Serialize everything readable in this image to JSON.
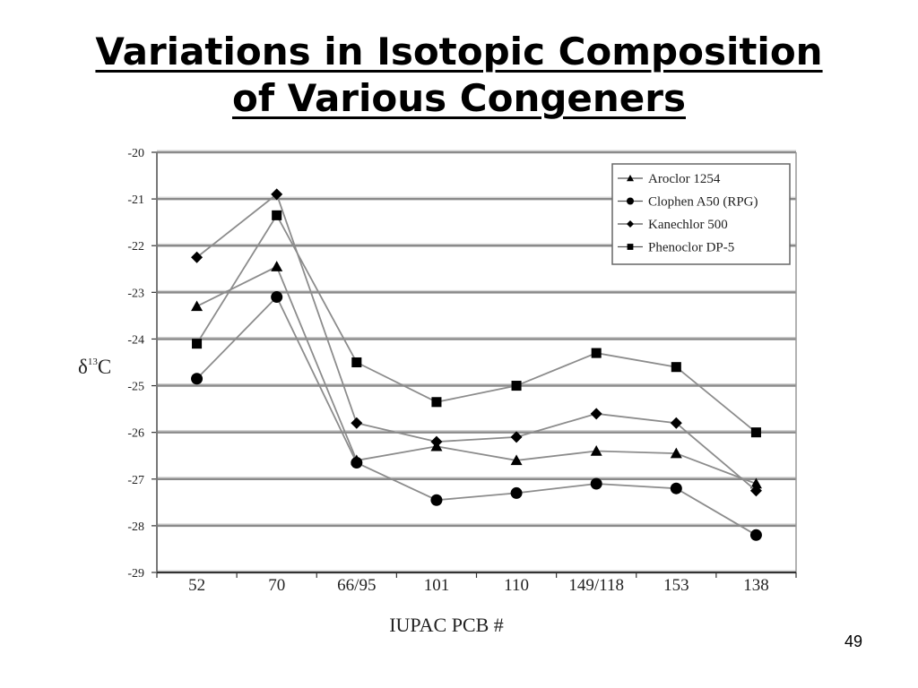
{
  "slide": {
    "title_line1": "Variations in Isotopic Composition",
    "title_line2": "of Various Congeners",
    "page_number": "49"
  },
  "chart_data": {
    "type": "line",
    "title": "",
    "xlabel": "IUPAC PCB #",
    "ylabel_prefix": "δ",
    "ylabel_sup": "13",
    "ylabel_suffix": "C",
    "categories": [
      "52",
      "70",
      "66/95",
      "101",
      "110",
      "149/118",
      "153",
      "138"
    ],
    "ylim": [
      -29,
      -20
    ],
    "yticks": [
      -20,
      -21,
      -22,
      -23,
      -24,
      -25,
      -26,
      -27,
      -28,
      -29
    ],
    "grid": "horizontal",
    "legend_position": "top-right",
    "series": [
      {
        "name": "Aroclor 1254",
        "marker": "triangle",
        "values": [
          -23.3,
          -22.45,
          -26.6,
          -26.3,
          -26.6,
          -26.4,
          -26.45,
          -27.1
        ]
      },
      {
        "name": "Clophen A50 (RPG)",
        "marker": "circle",
        "values": [
          -24.85,
          -23.1,
          -26.65,
          -27.45,
          -27.3,
          -27.1,
          -27.2,
          -28.2
        ]
      },
      {
        "name": "Kanechlor 500",
        "marker": "diamond",
        "values": [
          -22.25,
          -20.9,
          -25.8,
          -26.2,
          -26.1,
          -25.6,
          -25.8,
          -27.25
        ]
      },
      {
        "name": "Phenoclor DP-5",
        "marker": "square",
        "values": [
          -24.1,
          -21.35,
          -24.5,
          -25.35,
          -25.0,
          -24.3,
          -24.6,
          -26.0
        ]
      }
    ]
  }
}
